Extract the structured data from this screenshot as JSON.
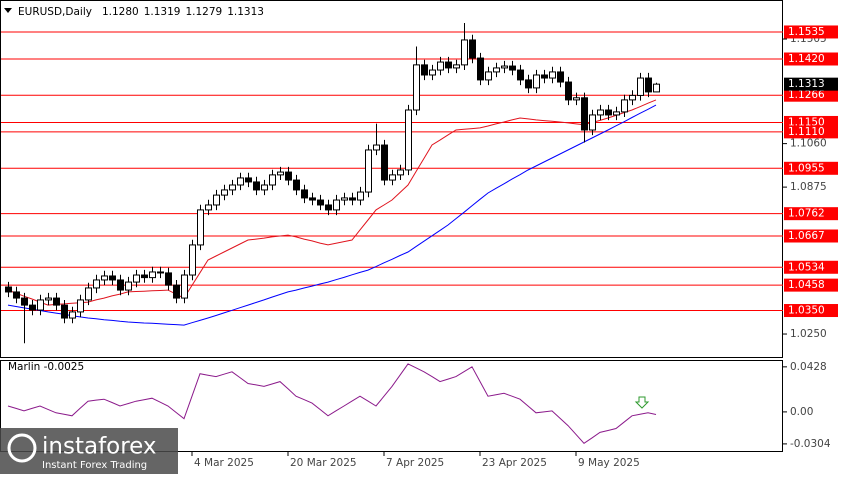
{
  "chart_data": {
    "type": "candlestick",
    "title": "EURUSD,Daily",
    "quote": [
      "1.1280",
      "1.1319",
      "1.1279",
      "1.1313"
    ],
    "categories": [
      null,
      null,
      null,
      null,
      null,
      null,
      null,
      null,
      null,
      null,
      null,
      null,
      null,
      null,
      null,
      null,
      null,
      null,
      null,
      null,
      null,
      null,
      null,
      "4 Mar 2025",
      null,
      null,
      null,
      null,
      null,
      null,
      null,
      null,
      null,
      null,
      null,
      "20 Mar 2025",
      null,
      null,
      null,
      null,
      null,
      null,
      null,
      null,
      null,
      null,
      null,
      "7 Apr 2025",
      null,
      null,
      null,
      null,
      null,
      null,
      null,
      null,
      null,
      null,
      null,
      "23 Apr 2025",
      null,
      null,
      null,
      null,
      null,
      null,
      null,
      null,
      null,
      null,
      null,
      "9 May 2025",
      null,
      null,
      null,
      null,
      null,
      null,
      null,
      null,
      null,
      null
    ],
    "open": [
      1.045,
      1.0429,
      1.0403,
      1.0373,
      1.0352,
      1.0395,
      1.0403,
      1.0373,
      1.0318,
      1.0344,
      1.0395,
      1.0446,
      1.048,
      1.0497,
      1.048,
      1.0437,
      1.0471,
      1.0501,
      1.049,
      1.0514,
      1.051,
      1.0458,
      1.0403,
      1.0501,
      1.0629,
      1.0778,
      1.0799,
      1.0841,
      1.0863,
      1.0884,
      1.0914,
      1.0897,
      1.0863,
      1.0884,
      1.0927,
      1.0939,
      1.0905,
      1.0863,
      1.0829,
      1.082,
      1.0799,
      1.0778,
      1.082,
      1.0829,
      1.082,
      1.0854,
      1.1033,
      1.1054,
      1.0905,
      1.0927,
      1.0948,
      1.1203,
      1.1395,
      1.1352,
      1.1373,
      1.1407,
      1.1382,
      1.1395,
      1.1501,
      1.1424,
      1.1331,
      1.1365,
      1.1382,
      1.139,
      1.1373,
      1.1331,
      1.1297,
      1.1352,
      1.1339,
      1.1365,
      1.1322,
      1.1246,
      1.1255,
      1.1118,
      1.1182,
      1.1203,
      1.1182,
      1.1195,
      1.1246,
      1.1265,
      1.1339,
      1.128
    ],
    "high": [
      1.0472,
      1.0451,
      1.0425,
      1.0395,
      1.0417,
      1.0425,
      1.0425,
      1.0395,
      1.0366,
      1.0417,
      1.0468,
      1.0502,
      1.0519,
      1.0519,
      1.0502,
      1.0493,
      1.0523,
      1.0523,
      1.0536,
      1.0536,
      1.0532,
      1.048,
      1.0523,
      1.0651,
      1.08,
      1.0821,
      1.0863,
      1.0885,
      1.0906,
      1.0936,
      1.0936,
      1.0919,
      1.0906,
      1.0949,
      1.0961,
      1.0961,
      1.0927,
      1.0885,
      1.0851,
      1.0842,
      1.0821,
      1.0842,
      1.0851,
      1.0851,
      1.0876,
      1.1055,
      1.1145,
      1.1076,
      1.0949,
      1.097,
      1.1225,
      1.1473,
      1.1417,
      1.1395,
      1.1429,
      1.1429,
      1.1417,
      1.1573,
      1.1523,
      1.1446,
      1.1387,
      1.1404,
      1.1412,
      1.1412,
      1.1395,
      1.1353,
      1.1374,
      1.1374,
      1.1387,
      1.1387,
      1.1344,
      1.1277,
      1.1277,
      1.1204,
      1.1225,
      1.1225,
      1.1217,
      1.1268,
      1.1287,
      1.1361,
      1.1361,
      1.1319
    ],
    "low": [
      1.0407,
      1.0381,
      1.0211,
      1.033,
      1.033,
      1.0373,
      1.0351,
      1.0296,
      1.0296,
      1.0322,
      1.0373,
      1.0424,
      1.0458,
      1.0458,
      1.0415,
      1.0415,
      1.0449,
      1.0468,
      1.0468,
      1.0488,
      1.0436,
      1.0381,
      1.0381,
      1.0479,
      1.0607,
      1.0756,
      1.0777,
      1.0819,
      1.0841,
      1.0862,
      1.0875,
      1.0841,
      1.0841,
      1.0862,
      1.0905,
      1.0883,
      1.0841,
      1.0807,
      1.0798,
      1.0777,
      1.0756,
      1.0756,
      1.0798,
      1.0798,
      1.0798,
      1.0832,
      1.1011,
      1.0883,
      1.0883,
      1.0905,
      1.0926,
      1.1181,
      1.133,
      1.133,
      1.1351,
      1.136,
      1.136,
      1.1373,
      1.1402,
      1.1309,
      1.1309,
      1.1343,
      1.136,
      1.1351,
      1.1309,
      1.1275,
      1.1275,
      1.1317,
      1.1317,
      1.13,
      1.1224,
      1.1224,
      1.1065,
      1.1096,
      1.116,
      1.116,
      1.116,
      1.1173,
      1.1224,
      1.1243,
      1.1258,
      1.1279
    ],
    "close": [
      1.0429,
      1.0403,
      1.0373,
      1.0352,
      1.0395,
      1.0403,
      1.0373,
      1.0318,
      1.0344,
      1.0395,
      1.0446,
      1.048,
      1.0497,
      1.048,
      1.0437,
      1.0471,
      1.0501,
      1.049,
      1.0514,
      1.051,
      1.0458,
      1.0403,
      1.0501,
      1.0629,
      1.0778,
      1.0799,
      1.0841,
      1.0863,
      1.0884,
      1.0914,
      1.0897,
      1.0863,
      1.0884,
      1.0927,
      1.0939,
      1.0905,
      1.0863,
      1.0829,
      1.082,
      1.0799,
      1.0778,
      1.082,
      1.0829,
      1.082,
      1.0854,
      1.1033,
      1.1054,
      1.0905,
      1.0927,
      1.0948,
      1.1203,
      1.1395,
      1.1352,
      1.1373,
      1.1407,
      1.1382,
      1.1395,
      1.1501,
      1.1424,
      1.1331,
      1.1365,
      1.1382,
      1.139,
      1.1373,
      1.1331,
      1.1297,
      1.1352,
      1.1339,
      1.1365,
      1.1322,
      1.1246,
      1.1255,
      1.1118,
      1.1182,
      1.1203,
      1.1182,
      1.1195,
      1.1246,
      1.1265,
      1.1339,
      1.128,
      1.1313
    ],
    "bull_color": "#ffffff",
    "bear_color": "#000000",
    "series": [
      {
        "color": "#0000ff",
        "values": [
          1.0373,
          1.0367,
          1.0361,
          1.0356,
          1.035,
          1.0344,
          1.0339,
          1.0334,
          1.0328,
          1.0323,
          1.0318,
          1.0315,
          1.0311,
          1.0308,
          1.0304,
          1.0301,
          1.0299,
          1.0297,
          1.0296,
          1.0294,
          1.0292,
          1.029,
          1.0288,
          1.0298,
          1.0308,
          1.0318,
          1.0329,
          1.034,
          1.0351,
          1.0362,
          1.0373,
          1.0384,
          1.0395,
          1.0407,
          1.0418,
          1.0429,
          1.0437,
          1.0446,
          1.0454,
          1.0463,
          1.0471,
          1.0481,
          1.0491,
          1.0502,
          1.0512,
          1.0522,
          1.0537,
          1.0553,
          1.0568,
          1.0584,
          1.0599,
          1.0622,
          1.0645,
          1.0668,
          1.0691,
          1.0714,
          1.0741,
          1.0768,
          1.0796,
          1.0823,
          1.085,
          1.087,
          1.0889,
          1.0909,
          1.0928,
          1.0948,
          1.0965,
          1.0982,
          1.0999,
          1.1016,
          1.1033,
          1.105,
          1.1067,
          1.1084,
          1.1101,
          1.1118,
          1.1136,
          1.1153,
          1.1171,
          1.1189,
          1.1206,
          1.1224
        ]
      },
      {
        "color": "#e0141e",
        "values": [
          1.0437,
          1.0424,
          1.0411,
          1.0399,
          1.0386,
          1.0373,
          1.0376,
          1.0378,
          1.0381,
          1.0383,
          1.0386,
          1.0395,
          1.0403,
          1.0412,
          1.042,
          1.0429,
          1.0431,
          1.0432,
          1.0434,
          1.0435,
          1.0437,
          1.042,
          1.0403,
          1.0457,
          1.0511,
          1.0565,
          1.0582,
          1.0599,
          1.0616,
          1.0633,
          1.065,
          1.0654,
          1.0658,
          1.0663,
          1.0667,
          1.0671,
          1.0663,
          1.0654,
          1.0646,
          1.0637,
          1.0629,
          1.0636,
          1.0643,
          1.065,
          1.0693,
          1.0735,
          1.0778,
          1.0799,
          1.082,
          1.0852,
          1.0884,
          1.0941,
          1.0997,
          1.1054,
          1.1075,
          1.1097,
          1.1118,
          1.1121,
          1.1124,
          1.1127,
          1.1135,
          1.1144,
          1.1152,
          1.1161,
          1.1169,
          1.1165,
          1.1161,
          1.1158,
          1.1155,
          1.1152,
          1.1148,
          1.1144,
          1.114,
          1.115,
          1.1159,
          1.1169,
          1.118,
          1.1192,
          1.1203,
          1.1217,
          1.1232,
          1.1246
        ]
      }
    ],
    "ylim": [
      1.0148,
      1.1671
    ],
    "yticks": [
      {
        "value": 1.1505,
        "label": "1.1505"
      },
      {
        "value": 1.106,
        "label": "1.1060"
      },
      {
        "value": 1.0875,
        "label": "1.0875"
      },
      {
        "value": 1.025,
        "label": "1.0250"
      }
    ],
    "level_color": "#ff0000",
    "levels": [
      {
        "value": 1.1535,
        "label": "1.1535"
      },
      {
        "value": 1.142,
        "label": "1.1420"
      },
      {
        "value": 1.1266,
        "label": "1.1266"
      },
      {
        "value": 1.115,
        "label": "1.1150"
      },
      {
        "value": 1.111,
        "label": "1.1110"
      },
      {
        "value": 1.0955,
        "label": "1.0955"
      },
      {
        "value": 1.0762,
        "label": "1.0762"
      },
      {
        "value": 1.0667,
        "label": "1.0667"
      },
      {
        "value": 1.0534,
        "label": "1.0534"
      },
      {
        "value": 1.0458,
        "label": "1.0458"
      },
      {
        "value": 1.035,
        "label": "1.0350"
      }
    ],
    "current_price": {
      "value": 1.1313,
      "label": "1.1313"
    },
    "indicator": {
      "type": "line",
      "title": "Marlin -0.0025",
      "color": "#8b1a8b",
      "values": [
        0.0056,
        0.0033,
        0.0009,
        0.0033,
        0.0056,
        0.0024,
        -0.0009,
        -0.0023,
        -0.0037,
        0.0033,
        0.0102,
        0.0112,
        0.0121,
        0.0089,
        0.0056,
        0.0079,
        0.0102,
        0.0116,
        0.013,
        0.0093,
        0.0056,
        -0.0005,
        -0.0065,
        0.0149,
        0.0363,
        0.0349,
        0.0335,
        0.0358,
        0.0381,
        0.0326,
        0.027,
        0.0256,
        0.0242,
        0.0265,
        0.0288,
        0.0219,
        0.0149,
        0.0117,
        0.0084,
        0.0024,
        -0.0037,
        0.001,
        0.0056,
        0.0103,
        0.0149,
        0.0103,
        0.0056,
        0.0149,
        0.0242,
        0.0349,
        0.0456,
        0.0419,
        0.0381,
        0.0335,
        0.0288,
        0.0312,
        0.0335,
        0.0382,
        0.0428,
        0.0289,
        0.0149,
        0.0163,
        0.0177,
        0.0149,
        0.0121,
        0.0056,
        -0.0009,
        0,
        0.0009,
        -0.0061,
        -0.013,
        -0.0214,
        -0.0298,
        -0.0247,
        -0.0195,
        -0.0177,
        -0.0158,
        -0.0098,
        -0.0037,
        -0.0023,
        -0.0009,
        -0.0025
      ],
      "ylim": [
        -0.0381,
        0.0493
      ],
      "yticks": [
        0.0428,
        {
          "value": 0,
          "label": "0.00"
        },
        -0.0304
      ]
    }
  },
  "watermark": {
    "brand": "instaforex",
    "tagline": "Instant Forex Trading"
  }
}
